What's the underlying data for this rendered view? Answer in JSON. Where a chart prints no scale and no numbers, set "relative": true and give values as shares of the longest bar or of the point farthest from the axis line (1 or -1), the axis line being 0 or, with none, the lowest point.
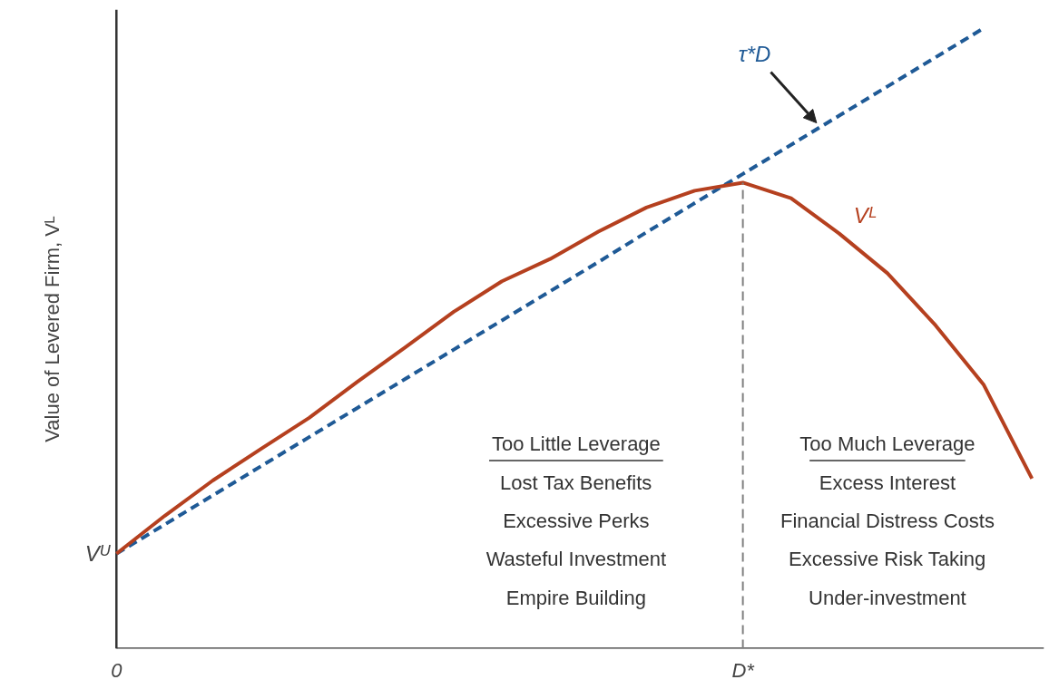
{
  "chart_data": {
    "type": "line",
    "relative": true,
    "ylabel": "Value of Levered Firm, Vᴸ",
    "categories": [
      "0",
      null,
      null,
      null,
      null,
      null,
      null,
      null,
      null,
      null,
      null,
      null,
      null,
      "D*",
      null,
      null,
      null,
      null,
      null,
      null
    ],
    "grid": false,
    "marker": "none",
    "series": [
      {
        "name": "τ*D",
        "color": "#1f5a96",
        "line_style": "dashed",
        "values": [
          0.153,
          0.2,
          0.247,
          0.294,
          0.341,
          0.388,
          0.435,
          0.482,
          0.529,
          0.576,
          0.623,
          0.671,
          0.718,
          0.765,
          0.812,
          0.859,
          0.906,
          0.953,
          1.0,
          null
        ]
      },
      {
        "name": "Vᴸ",
        "color": "#b5401f",
        "line_style": "solid",
        "values": [
          0.153,
          0.214,
          0.271,
          0.322,
          0.372,
          0.43,
          0.486,
          0.543,
          0.592,
          0.628,
          0.672,
          0.711,
          0.738,
          0.751,
          0.726,
          0.669,
          0.605,
          0.521,
          0.425,
          0.274
        ]
      }
    ],
    "ref_lines": [
      {
        "axis": "x",
        "value": "D*",
        "color": "#7f7f7f",
        "line_style": "dashed"
      }
    ],
    "annotations": [
      {
        "text": "Vᵁ",
        "x": "0",
        "y": 0.153
      },
      "Too Little Leverage\nLost Tax Benefits\nExcessive Perks\nWasteful Investment\nEmpire Building",
      "Too Much Leverage\nExcess Interest\nFinancial Distress Costs\nExcessive Risk Taking\nUnder-investment"
    ]
  }
}
